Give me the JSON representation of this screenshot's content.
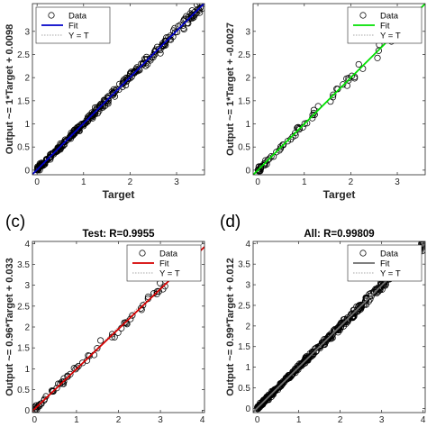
{
  "chart_data": [
    {
      "type": "scatter",
      "panel_label": "",
      "title": "",
      "xlabel": "Target",
      "ylabel": "Output ~= 1*Target + 0.0098",
      "xlim": [
        -0.1,
        3.6
      ],
      "ylim": [
        -0.1,
        3.6
      ],
      "xticks": [
        0,
        1,
        2,
        3
      ],
      "yticks": [
        0,
        0.5,
        1,
        1.5,
        2,
        2.5,
        3
      ],
      "fit": {
        "slope": 1.0,
        "intercept": 0.0098,
        "color": "#0000c8"
      },
      "legend": [
        "Data",
        "Fit",
        "Y = T"
      ],
      "legend_position": "top-left",
      "series": [
        {
          "name": "Data",
          "generated": {
            "count": 320,
            "max": 3.55,
            "noise": 0.05,
            "seed": 11
          }
        }
      ]
    },
    {
      "type": "scatter",
      "panel_label": "",
      "title": "",
      "xlabel": "Target",
      "ylabel": "Output ~= 1*Target + -0.0027",
      "xlim": [
        -0.1,
        3.6
      ],
      "ylim": [
        -0.1,
        3.6
      ],
      "xticks": [
        0,
        1,
        2,
        3
      ],
      "yticks": [
        0,
        0.5,
        1,
        1.5,
        2,
        2.5,
        3
      ],
      "fit": {
        "slope": 1.0,
        "intercept": -0.0027,
        "color": "#00e000"
      },
      "legend": [
        "Data",
        "Fit",
        "Y = T"
      ],
      "legend_position": "top-right",
      "series": [
        {
          "name": "Data",
          "generated": {
            "count": 75,
            "max": 3.3,
            "noise": 0.07,
            "seed": 23
          }
        }
      ]
    },
    {
      "type": "scatter",
      "panel_label": "(c)",
      "title": "Test: R=0.9955",
      "xlabel": "",
      "ylabel": "Output ~= 0.96*Target + 0.033",
      "xlim": [
        -0.05,
        4.05
      ],
      "ylim": [
        -0.05,
        4.05
      ],
      "xticks": [
        0,
        1,
        2,
        3,
        4
      ],
      "yticks": [
        0,
        0.5,
        1,
        1.5,
        2,
        2.5,
        3,
        3.5,
        4
      ],
      "fit": {
        "slope": 0.96,
        "intercept": 0.033,
        "color": "#d40000"
      },
      "legend": [
        "Data",
        "Fit",
        "Y = T"
      ],
      "legend_position": "top-right",
      "series": [
        {
          "name": "Data",
          "generated": {
            "count": 70,
            "max": 3.9,
            "noise": 0.06,
            "seed": 37
          }
        }
      ]
    },
    {
      "type": "scatter",
      "panel_label": "(d)",
      "title": "All: R=0.99809",
      "xlabel": "",
      "ylabel": "Output ~= 0.99*Target + 0.012",
      "xlim": [
        -0.1,
        4.05
      ],
      "ylim": [
        -0.1,
        4.05
      ],
      "xticks": [
        0,
        1,
        2,
        3,
        4
      ],
      "yticks": [
        0,
        0.5,
        1,
        1.5,
        2,
        2.5,
        3,
        3.5,
        4
      ],
      "fit": {
        "slope": 0.99,
        "intercept": 0.012,
        "color": "#6e6e6e"
      },
      "legend": [
        "Data",
        "Fit",
        "Y = T"
      ],
      "legend_position": "top-right",
      "series": [
        {
          "name": "Data",
          "generated": {
            "count": 420,
            "max": 4.0,
            "noise": 0.05,
            "seed": 53
          }
        }
      ]
    }
  ]
}
